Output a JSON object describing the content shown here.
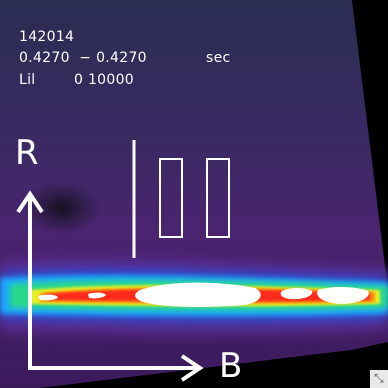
{
  "readout": {
    "shot_number": "142014",
    "time_range": "0.4270  − 0.4270",
    "time_unit": "sec",
    "filter_label": "Lil",
    "filter_value": "0 10000"
  },
  "axes": {
    "vertical_label": "R",
    "horizontal_label": "B"
  },
  "icons": {
    "corner": "resize-handle-icon",
    "axis_arrow_up": "arrow-up-icon",
    "axis_arrow_right": "arrow-right-icon"
  },
  "colors": {
    "background": "#000000",
    "overlay": "#ffffff",
    "emission_low": "#3a1866",
    "emission_mid": "#1fa8ff",
    "emission_high": "#ff2a1a",
    "emission_peak": "#ffffff"
  }
}
